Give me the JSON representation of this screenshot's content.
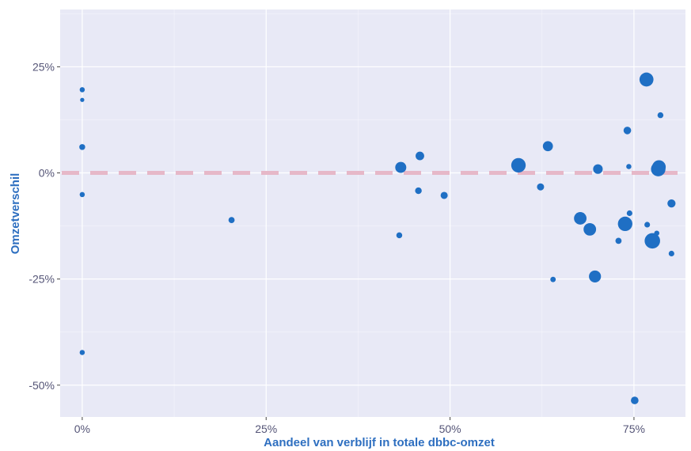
{
  "chart_data": {
    "type": "scatter",
    "title": "",
    "xlabel": "Aandeel van verblijf in totale dbbc-omzet",
    "ylabel": "Omzetverschil",
    "xlim": [
      -0.03,
      0.82
    ],
    "ylim": [
      -0.575,
      0.385
    ],
    "x_ticks": [
      {
        "value": 0.0,
        "label": "0%"
      },
      {
        "value": 0.25,
        "label": "25%"
      },
      {
        "value": 0.5,
        "label": "50%"
      },
      {
        "value": 0.75,
        "label": "75%"
      }
    ],
    "y_ticks": [
      {
        "value": 0.25,
        "label": "25%"
      },
      {
        "value": 0.0,
        "label": "0%"
      },
      {
        "value": -0.25,
        "label": "-25%"
      },
      {
        "value": -0.5,
        "label": "-50%"
      }
    ],
    "grid": true,
    "reference_line": {
      "y": 0.0,
      "style": "dashed",
      "color": "#e6b8c8"
    },
    "colors": {
      "panel_background": "#e8e9f6",
      "grid_major": "#ffffff",
      "point": "#1f6fc4",
      "axis_title": "#2e6fc0",
      "tick_label": "#555577"
    },
    "size_encoding": "relative",
    "points": [
      {
        "x": 0.0,
        "y": 0.196,
        "size": 1.2
      },
      {
        "x": 0.0,
        "y": 0.172,
        "size": 0.8
      },
      {
        "x": 0.0,
        "y": 0.061,
        "size": 1.5
      },
      {
        "x": 0.0,
        "y": -0.051,
        "size": 1.2
      },
      {
        "x": 0.0,
        "y": -0.423,
        "size": 1.2
      },
      {
        "x": 0.203,
        "y": -0.111,
        "size": 1.6
      },
      {
        "x": 0.433,
        "y": 0.013,
        "size": 3.6
      },
      {
        "x": 0.431,
        "y": -0.147,
        "size": 1.5
      },
      {
        "x": 0.459,
        "y": 0.04,
        "size": 2.6
      },
      {
        "x": 0.457,
        "y": -0.042,
        "size": 1.8
      },
      {
        "x": 0.492,
        "y": -0.053,
        "size": 2.0
      },
      {
        "x": 0.593,
        "y": 0.018,
        "size": 5.0
      },
      {
        "x": 0.623,
        "y": -0.033,
        "size": 2.0
      },
      {
        "x": 0.633,
        "y": 0.063,
        "size": 3.2
      },
      {
        "x": 0.64,
        "y": -0.251,
        "size": 1.3
      },
      {
        "x": 0.677,
        "y": -0.107,
        "size": 4.2
      },
      {
        "x": 0.69,
        "y": -0.133,
        "size": 4.2
      },
      {
        "x": 0.697,
        "y": -0.244,
        "size": 4.0
      },
      {
        "x": 0.701,
        "y": 0.009,
        "size": 3.0
      },
      {
        "x": 0.729,
        "y": -0.16,
        "size": 1.6
      },
      {
        "x": 0.738,
        "y": -0.12,
        "size": 5.0
      },
      {
        "x": 0.741,
        "y": 0.1,
        "size": 2.2
      },
      {
        "x": 0.743,
        "y": 0.015,
        "size": 1.2
      },
      {
        "x": 0.744,
        "y": -0.095,
        "size": 1.4
      },
      {
        "x": 0.751,
        "y": -0.536,
        "size": 2.2
      },
      {
        "x": 0.767,
        "y": 0.22,
        "size": 4.8
      },
      {
        "x": 0.768,
        "y": -0.122,
        "size": 1.4
      },
      {
        "x": 0.775,
        "y": -0.16,
        "size": 5.4
      },
      {
        "x": 0.781,
        "y": -0.142,
        "size": 1.2
      },
      {
        "x": 0.783,
        "y": 0.009,
        "size": 5.0
      },
      {
        "x": 0.784,
        "y": 0.014,
        "size": 4.6
      },
      {
        "x": 0.786,
        "y": 0.136,
        "size": 1.5
      },
      {
        "x": 0.801,
        "y": -0.072,
        "size": 2.4
      },
      {
        "x": 0.801,
        "y": -0.19,
        "size": 1.4
      }
    ]
  }
}
